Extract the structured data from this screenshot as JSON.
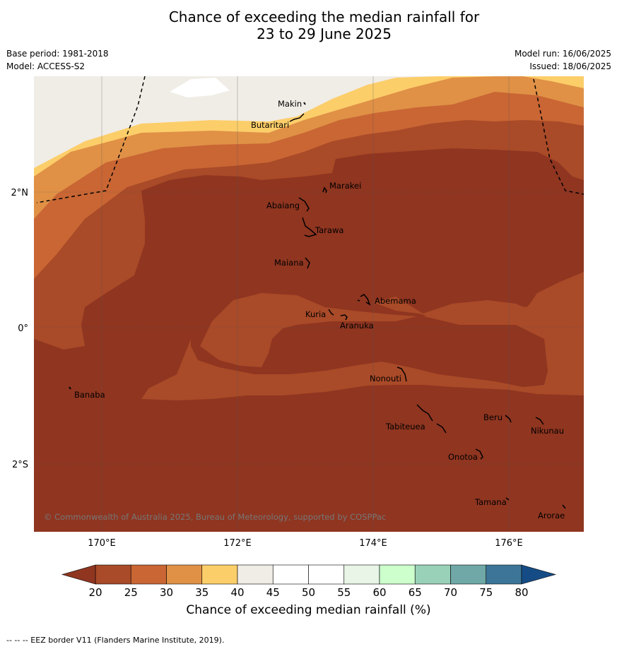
{
  "title_line1": "Chance of exceeding the median rainfall for",
  "title_line2": "23 to 29 June 2025",
  "base_period": "Base period: 1981-2018",
  "model": "Model: ACCESS-S2",
  "model_run": "Model run: 16/06/2025",
  "issued": "Issued: 18/06/2025",
  "copyright": "© Commonwealth of Australia 2025, Bureau of Meteorology, supported by COSPPac",
  "footnote": "--  --  -- EEZ border V11 (Flanders Marine Institute, 2019).",
  "axes": {
    "lon_ticks": [
      "170°E",
      "172°E",
      "174°E",
      "176°E"
    ],
    "lat_ticks": [
      "2°N",
      "0°",
      "2°S"
    ]
  },
  "places": [
    "Makin",
    "Butaritari",
    "Marakei",
    "Abaiang",
    "Tarawa",
    "Maiana",
    "Abemama",
    "Kuria",
    "Aranuka",
    "Nonouti",
    "Banaba",
    "Beru",
    "Tabiteuea",
    "Nikunau",
    "Onotoa",
    "Tamana",
    "Arorae"
  ],
  "colorbar": {
    "title": "Chance of exceeding median rainfall (%)",
    "ticks": [
      "20",
      "25",
      "30",
      "35",
      "40",
      "45",
      "50",
      "55",
      "60",
      "65",
      "70",
      "75",
      "80"
    ],
    "colors": [
      "#8f3520",
      "#a94a28",
      "#c96634",
      "#e09146",
      "#fcce6a",
      "#f0ece6",
      "#ffffff",
      "#ffffff",
      "#e8f5e7",
      "#ccffcc",
      "#99d1b8",
      "#6fa8a7",
      "#3c7598",
      "#164c85"
    ],
    "under_color": "#8f3520",
    "over_color": "#164c85"
  }
}
